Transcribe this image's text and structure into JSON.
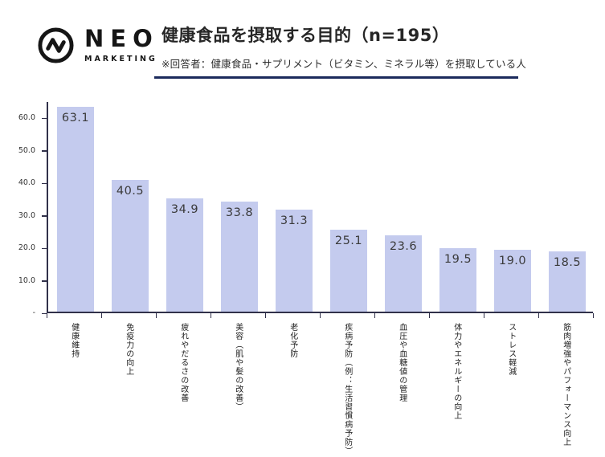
{
  "header": {
    "logo": {
      "brand": "NEO",
      "sub": "MARKETING",
      "icon": "pulse-circle-icon",
      "color": "#161616"
    },
    "title": "健康食品を摂取する目的（n=195）",
    "subtitle": "※回答者：健康食品・サプリメント（ビタミン、ミネラル等）を摂取している人",
    "underline_color": "#1b2a5c"
  },
  "chart_data": {
    "type": "bar",
    "title": "健康食品を摂取する目的（n=195）",
    "categories": [
      "健康維持",
      "免疫力の向上",
      "疲れやだるさの改善",
      "美容（肌や髪の改善）",
      "老化予防",
      "疾病予防（例：生活習慣病予防）",
      "血圧や血糖値の管理",
      "体力やエネルギーの向上",
      "ストレス軽減",
      "筋肉増強やパフォーマンス向上"
    ],
    "values": [
      63.1,
      40.5,
      34.9,
      33.8,
      31.3,
      25.1,
      23.6,
      19.5,
      19.0,
      18.5
    ],
    "value_labels": [
      "63.1",
      "40.5",
      "34.9",
      "33.8",
      "31.3",
      "25.1",
      "23.6",
      "19.5",
      "19.0",
      "18.5"
    ],
    "y_ticks": [
      "60.0",
      "50.0",
      "40.0",
      "30.0",
      "20.0",
      "10.0",
      "-"
    ],
    "y_tick_values": [
      60,
      50,
      40,
      30,
      20,
      10,
      0
    ],
    "ylim": [
      0,
      65
    ],
    "xlabel": "",
    "ylabel": "",
    "grid": false,
    "legend": false,
    "value_label_position": "inside-top",
    "bar_color": "#c4cbee",
    "axis_color": "#31314a",
    "value_label_color": "#3a3a3a",
    "tick_label_color": "#333333"
  }
}
